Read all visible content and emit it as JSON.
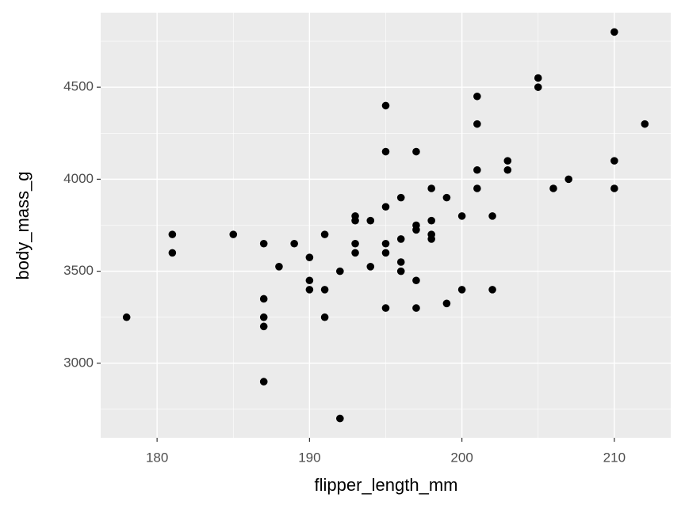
{
  "chart_data": {
    "type": "scatter",
    "xlabel": "flipper_length_mm",
    "ylabel": "body_mass_g",
    "x": [
      178,
      181,
      181,
      185,
      187,
      187,
      187,
      187,
      187,
      188,
      189,
      190,
      190,
      190,
      191,
      191,
      191,
      192,
      192,
      193,
      193,
      193,
      193,
      194,
      194,
      195,
      195,
      195,
      195,
      195,
      195,
      196,
      196,
      196,
      196,
      197,
      197,
      197,
      197,
      197,
      198,
      198,
      198,
      198,
      199,
      199,
      200,
      200,
      201,
      201,
      201,
      201,
      202,
      202,
      203,
      203,
      205,
      205,
      206,
      207,
      210,
      210,
      210,
      212
    ],
    "y": [
      3250,
      3700,
      3600,
      3700,
      3650,
      3350,
      3250,
      3200,
      2900,
      3525,
      3650,
      3575,
      3450,
      3400,
      3700,
      3400,
      3250,
      3500,
      2700,
      3800,
      3775,
      3650,
      3600,
      3775,
      3525,
      4400,
      4150,
      3850,
      3650,
      3600,
      3300,
      3900,
      3675,
      3550,
      3500,
      4150,
      3750,
      3725,
      3450,
      3300,
      3950,
      3775,
      3700,
      3675,
      3900,
      3325,
      3800,
      3400,
      4450,
      4300,
      4050,
      3950,
      3800,
      3400,
      4100,
      4050,
      4550,
      4500,
      3950,
      4000,
      4800,
      4100,
      3950,
      4300
    ],
    "color": "#000000",
    "xlim": [
      176.3,
      213.7
    ],
    "ylim": [
      2595,
      4905
    ],
    "xticks": [
      180,
      190,
      200,
      210
    ],
    "yticks": [
      3000,
      3500,
      4000,
      4500
    ],
    "grid": true,
    "panel_color": "#ebebeb"
  }
}
